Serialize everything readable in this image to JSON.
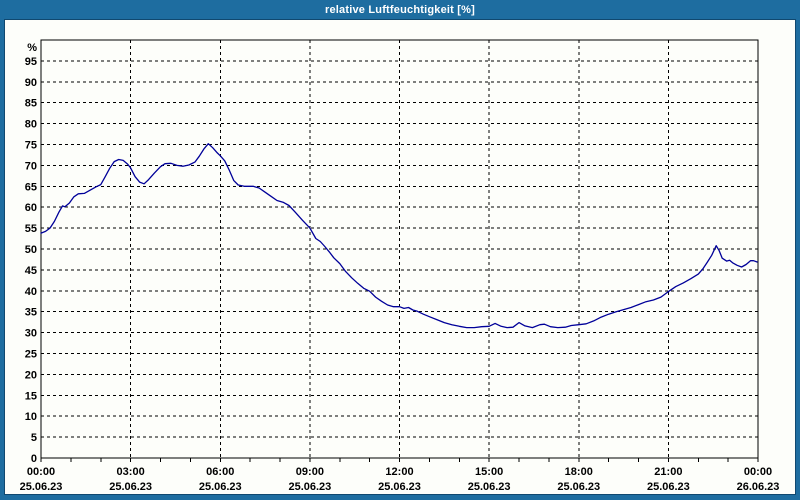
{
  "window": {
    "title": "relative Luftfeuchtigkeit [%]"
  },
  "colors": {
    "frame": "#1E6DA0",
    "title_text": "#FFFFFF",
    "client_bg": "#FDFEFA",
    "grid": "#000000",
    "axis_text": "#000000",
    "line": "#000099"
  },
  "chart_data": {
    "type": "line",
    "title": "relative Luftfeuchtigkeit [%]",
    "xlabel": "",
    "ylabel": "%",
    "unit_label": "%",
    "xlim": [
      0,
      24
    ],
    "ylim": [
      0,
      100
    ],
    "grid": {
      "style": "dashed",
      "color": "#000000",
      "y_step": 5,
      "x_step_hours": 3
    },
    "legend": "none",
    "y_ticks": [
      0,
      5,
      10,
      15,
      20,
      25,
      30,
      35,
      40,
      45,
      50,
      55,
      60,
      65,
      70,
      75,
      80,
      85,
      90,
      95
    ],
    "x_ticks_minor_hours": 1,
    "x_ticks": [
      {
        "hour": 0,
        "time": "00:00",
        "date": "25.06.23"
      },
      {
        "hour": 3,
        "time": "03:00",
        "date": "25.06.23"
      },
      {
        "hour": 6,
        "time": "06:00",
        "date": "25.06.23"
      },
      {
        "hour": 9,
        "time": "09:00",
        "date": "25.06.23"
      },
      {
        "hour": 12,
        "time": "12:00",
        "date": "25.06.23"
      },
      {
        "hour": 15,
        "time": "15:00",
        "date": "25.06.23"
      },
      {
        "hour": 18,
        "time": "18:00",
        "date": "25.06.23"
      },
      {
        "hour": 21,
        "time": "21:00",
        "date": "25.06.23"
      },
      {
        "hour": 24,
        "time": "00:00",
        "date": "26.06.23"
      }
    ],
    "series": [
      {
        "name": "relative Luftfeuchtigkeit",
        "unit": "%",
        "color": "#000099",
        "points": [
          [
            0.0,
            53.8
          ],
          [
            0.15,
            54.2
          ],
          [
            0.3,
            55.0
          ],
          [
            0.45,
            56.6
          ],
          [
            0.6,
            58.8
          ],
          [
            0.72,
            60.3
          ],
          [
            0.8,
            60.1
          ],
          [
            0.95,
            61.0
          ],
          [
            1.1,
            62.5
          ],
          [
            1.25,
            63.2
          ],
          [
            1.45,
            63.3
          ],
          [
            1.65,
            64.1
          ],
          [
            1.85,
            64.9
          ],
          [
            2.0,
            65.4
          ],
          [
            2.15,
            67.3
          ],
          [
            2.3,
            69.3
          ],
          [
            2.45,
            70.9
          ],
          [
            2.6,
            71.4
          ],
          [
            2.75,
            71.2
          ],
          [
            2.9,
            70.3
          ],
          [
            3.0,
            69.4
          ],
          [
            3.15,
            67.3
          ],
          [
            3.3,
            66.0
          ],
          [
            3.45,
            65.6
          ],
          [
            3.6,
            66.6
          ],
          [
            3.8,
            68.2
          ],
          [
            4.0,
            69.7
          ],
          [
            4.15,
            70.4
          ],
          [
            4.35,
            70.5
          ],
          [
            4.55,
            70.0
          ],
          [
            4.75,
            69.8
          ],
          [
            4.95,
            70.1
          ],
          [
            5.15,
            70.8
          ],
          [
            5.3,
            72.2
          ],
          [
            5.45,
            73.9
          ],
          [
            5.6,
            75.2
          ],
          [
            5.75,
            74.2
          ],
          [
            5.9,
            73.0
          ],
          [
            6.0,
            72.3
          ],
          [
            6.15,
            71.1
          ],
          [
            6.3,
            68.9
          ],
          [
            6.45,
            66.4
          ],
          [
            6.6,
            65.3
          ],
          [
            6.8,
            65.0
          ],
          [
            7.1,
            65.0
          ],
          [
            7.3,
            64.6
          ],
          [
            7.5,
            63.6
          ],
          [
            7.7,
            62.6
          ],
          [
            7.9,
            61.6
          ],
          [
            8.1,
            61.2
          ],
          [
            8.3,
            60.4
          ],
          [
            8.5,
            58.9
          ],
          [
            8.75,
            56.9
          ],
          [
            9.0,
            55.0
          ],
          [
            9.2,
            52.5
          ],
          [
            9.35,
            51.8
          ],
          [
            9.5,
            50.6
          ],
          [
            9.65,
            49.3
          ],
          [
            9.8,
            47.9
          ],
          [
            10.0,
            46.5
          ],
          [
            10.2,
            44.6
          ],
          [
            10.4,
            43.1
          ],
          [
            10.6,
            41.8
          ],
          [
            10.8,
            40.6
          ],
          [
            11.0,
            39.9
          ],
          [
            11.2,
            38.5
          ],
          [
            11.4,
            37.5
          ],
          [
            11.6,
            36.6
          ],
          [
            11.8,
            36.2
          ],
          [
            12.0,
            36.2
          ],
          [
            12.15,
            35.8
          ],
          [
            12.3,
            36.0
          ],
          [
            12.45,
            35.4
          ],
          [
            12.6,
            35.1
          ],
          [
            12.8,
            34.4
          ],
          [
            13.0,
            33.8
          ],
          [
            13.25,
            33.1
          ],
          [
            13.5,
            32.4
          ],
          [
            13.75,
            31.9
          ],
          [
            14.0,
            31.5
          ],
          [
            14.25,
            31.2
          ],
          [
            14.5,
            31.2
          ],
          [
            14.75,
            31.4
          ],
          [
            15.0,
            31.5
          ],
          [
            15.2,
            32.2
          ],
          [
            15.4,
            31.5
          ],
          [
            15.6,
            31.2
          ],
          [
            15.8,
            31.3
          ],
          [
            16.0,
            32.4
          ],
          [
            16.2,
            31.6
          ],
          [
            16.45,
            31.2
          ],
          [
            16.7,
            31.9
          ],
          [
            16.85,
            32.0
          ],
          [
            17.05,
            31.4
          ],
          [
            17.3,
            31.2
          ],
          [
            17.55,
            31.3
          ],
          [
            17.75,
            31.7
          ],
          [
            18.0,
            31.9
          ],
          [
            18.25,
            32.1
          ],
          [
            18.5,
            32.8
          ],
          [
            18.75,
            33.7
          ],
          [
            19.0,
            34.4
          ],
          [
            19.25,
            35.0
          ],
          [
            19.5,
            35.5
          ],
          [
            19.75,
            36.0
          ],
          [
            20.0,
            36.7
          ],
          [
            20.25,
            37.4
          ],
          [
            20.5,
            37.8
          ],
          [
            20.75,
            38.5
          ],
          [
            21.0,
            39.8
          ],
          [
            21.25,
            41.0
          ],
          [
            21.5,
            41.9
          ],
          [
            21.75,
            42.9
          ],
          [
            22.0,
            44.0
          ],
          [
            22.15,
            45.2
          ],
          [
            22.3,
            46.8
          ],
          [
            22.45,
            48.5
          ],
          [
            22.6,
            50.8
          ],
          [
            22.7,
            49.6
          ],
          [
            22.8,
            47.8
          ],
          [
            22.95,
            47.1
          ],
          [
            23.05,
            47.3
          ],
          [
            23.15,
            46.7
          ],
          [
            23.3,
            46.1
          ],
          [
            23.45,
            45.7
          ],
          [
            23.6,
            46.3
          ],
          [
            23.75,
            47.2
          ],
          [
            23.85,
            47.2
          ],
          [
            23.97,
            46.9
          ]
        ]
      }
    ]
  }
}
